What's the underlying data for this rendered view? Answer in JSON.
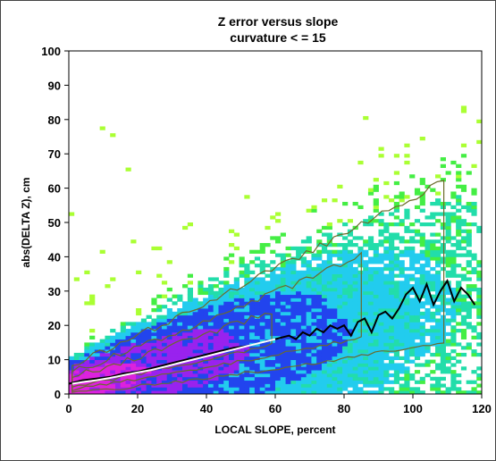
{
  "chart_data": {
    "type": "heatmap",
    "title": "Z error versus slope",
    "subtitle": "curvature < = 15",
    "xlabel": "LOCAL SLOPE, percent",
    "ylabel": "abs(DELTA Z), cm",
    "xlim": [
      0,
      120
    ],
    "ylim": [
      0,
      100
    ],
    "xticks": [
      "0",
      "20",
      "40",
      "60",
      "80",
      "100",
      "120"
    ],
    "yticks": [
      "0",
      "10",
      "20",
      "30",
      "40",
      "50",
      "60",
      "70",
      "80",
      "90",
      "100"
    ],
    "grid": false,
    "density_colors": [
      "#aaff33",
      "#44ee44",
      "#22ddaa",
      "#22ccee",
      "#2244ee",
      "#9922ee",
      "#dd22dd",
      "#ff22ff"
    ],
    "contour_color": "#6b6b2a",
    "series": [
      {
        "name": "",
        "color": "#000000",
        "x": [
          0,
          4,
          8,
          12,
          16,
          20,
          24,
          28,
          32,
          36,
          40,
          44,
          48,
          52,
          56,
          60,
          64,
          66,
          68,
          70,
          72,
          74,
          76,
          78,
          80,
          82,
          84,
          86,
          88,
          90,
          92,
          94,
          96,
          98,
          100,
          102,
          104,
          106,
          108,
          110,
          112,
          114,
          116,
          118
        ],
        "y": [
          3,
          4,
          4.5,
          5,
          6,
          6.5,
          7.5,
          8.5,
          9.5,
          10.5,
          11.5,
          12.5,
          13.5,
          14,
          15,
          16,
          17,
          16,
          18,
          17,
          19,
          18,
          20,
          19,
          20,
          17,
          21,
          22,
          18,
          23,
          24,
          22,
          25,
          29,
          31,
          27,
          32,
          26,
          30,
          33,
          27,
          31,
          29,
          26
        ]
      },
      {
        "name": "",
        "color": "#ffffff",
        "x": [
          1,
          4,
          8,
          12,
          16,
          20,
          24,
          28,
          32,
          36,
          40,
          44,
          48,
          52,
          56,
          60
        ],
        "y": [
          3,
          3.5,
          4,
          4.7,
          5.5,
          6.3,
          7,
          8,
          9,
          10,
          11,
          12,
          13,
          14,
          15,
          16
        ]
      }
    ]
  }
}
